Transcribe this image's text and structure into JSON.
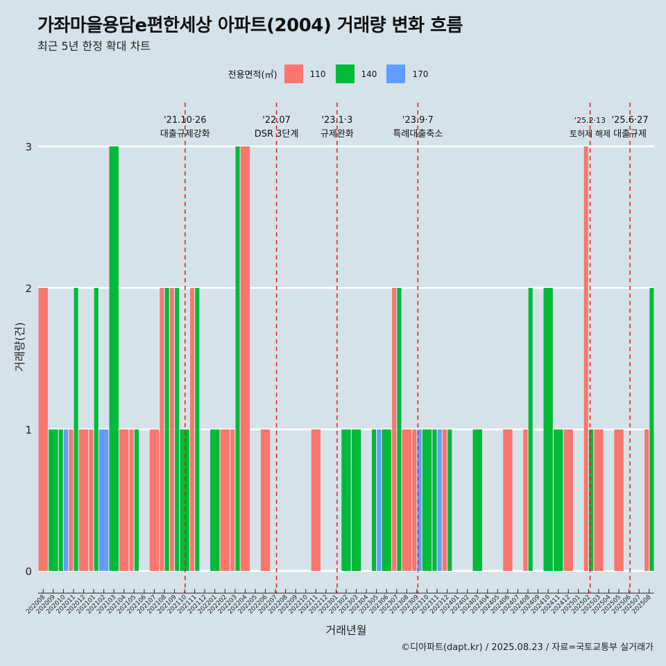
{
  "title": "가좌마을용담e편한세상 아파트(2004) 거래량 변화 흐름",
  "subtitle": "최근 5년 한정 확대 차트",
  "caption": "©디아파트(dapt.kr) / 2025.08.23 / 자료=국토교통부 실거래가",
  "legend": {
    "title": "전용면적(㎡)",
    "items": [
      {
        "label": "110",
        "color": "#f8766d"
      },
      {
        "label": "140",
        "color": "#00ba38"
      },
      {
        "label": "170",
        "color": "#619cff"
      }
    ]
  },
  "chart_data": {
    "type": "bar",
    "xlabel": "거래년월",
    "ylabel": "거래량(건)",
    "ylim": [
      0,
      3
    ],
    "yticks": [
      0,
      1,
      2,
      3
    ],
    "categories": [
      "202008",
      "202009",
      "202010",
      "202011",
      "202012",
      "202101",
      "202102",
      "202103",
      "202104",
      "202105",
      "202106",
      "202107",
      "202108",
      "202109",
      "202110",
      "202111",
      "202112",
      "202201",
      "202202",
      "202203",
      "202204",
      "202205",
      "202206",
      "202207",
      "202208",
      "202209",
      "202210",
      "202211",
      "202212",
      "202301",
      "202302",
      "202303",
      "202304",
      "202305",
      "202306",
      "202307",
      "202308",
      "202309",
      "202310",
      "202311",
      "202312",
      "202401",
      "202402",
      "202403",
      "202404",
      "202405",
      "202406",
      "202407",
      "202408",
      "202409",
      "202410",
      "202411",
      "202412",
      "202501",
      "202502",
      "202503",
      "202504",
      "202505",
      "202506",
      "202507",
      "202508"
    ],
    "series": [
      {
        "name": "110",
        "color": "#f8766d",
        "values": [
          2,
          0,
          0,
          1,
          1,
          1,
          0,
          0,
          1,
          1,
          0,
          1,
          2,
          2,
          0,
          2,
          0,
          0,
          1,
          1,
          3,
          0,
          1,
          0,
          0,
          0,
          0,
          1,
          0,
          0,
          0,
          0,
          0,
          0,
          0,
          2,
          1,
          1,
          0,
          0,
          1,
          0,
          0,
          0,
          0,
          0,
          1,
          0,
          1,
          0,
          0,
          0,
          1,
          0,
          3,
          1,
          0,
          1,
          0,
          0,
          1
        ]
      },
      {
        "name": "140",
        "color": "#00ba38",
        "values": [
          0,
          1,
          1,
          2,
          0,
          2,
          0,
          3,
          0,
          1,
          0,
          0,
          2,
          2,
          1,
          2,
          0,
          1,
          0,
          3,
          0,
          0,
          0,
          0,
          0,
          0,
          0,
          0,
          0,
          0,
          1,
          1,
          0,
          1,
          1,
          2,
          0,
          0,
          1,
          1,
          1,
          0,
          0,
          1,
          0,
          0,
          0,
          0,
          2,
          0,
          2,
          1,
          0,
          0,
          1,
          0,
          0,
          0,
          0,
          0,
          2
        ]
      },
      {
        "name": "170",
        "color": "#619cff",
        "values": [
          0,
          0,
          1,
          0,
          0,
          0,
          1,
          0,
          0,
          0,
          0,
          0,
          0,
          0,
          0,
          0,
          0,
          0,
          0,
          0,
          0,
          0,
          0,
          0,
          0,
          0,
          0,
          0,
          0,
          0,
          0,
          0,
          0,
          1,
          0,
          0,
          0,
          1,
          0,
          1,
          0,
          0,
          0,
          0,
          0,
          0,
          0,
          0,
          0,
          0,
          0,
          0,
          0,
          0,
          0,
          0,
          0,
          0,
          0,
          0,
          0
        ]
      }
    ],
    "annotations": [
      {
        "date": "'21.10·26",
        "label": "대출규제강화",
        "x": 14.55
      },
      {
        "date": "'22.07",
        "label": "DSR 3단계",
        "x": 23.6
      },
      {
        "date": "'23.1·3",
        "label": "규제완화",
        "x": 29.6
      },
      {
        "date": "'23.9·7",
        "label": "특례대출축소",
        "x": 37.6
      },
      {
        "date": "'25.2·13",
        "label": "토허제 해제",
        "x": 54.65
      },
      {
        "date": "'25.6·27",
        "label": "대출규제",
        "x": 58.6
      }
    ]
  }
}
